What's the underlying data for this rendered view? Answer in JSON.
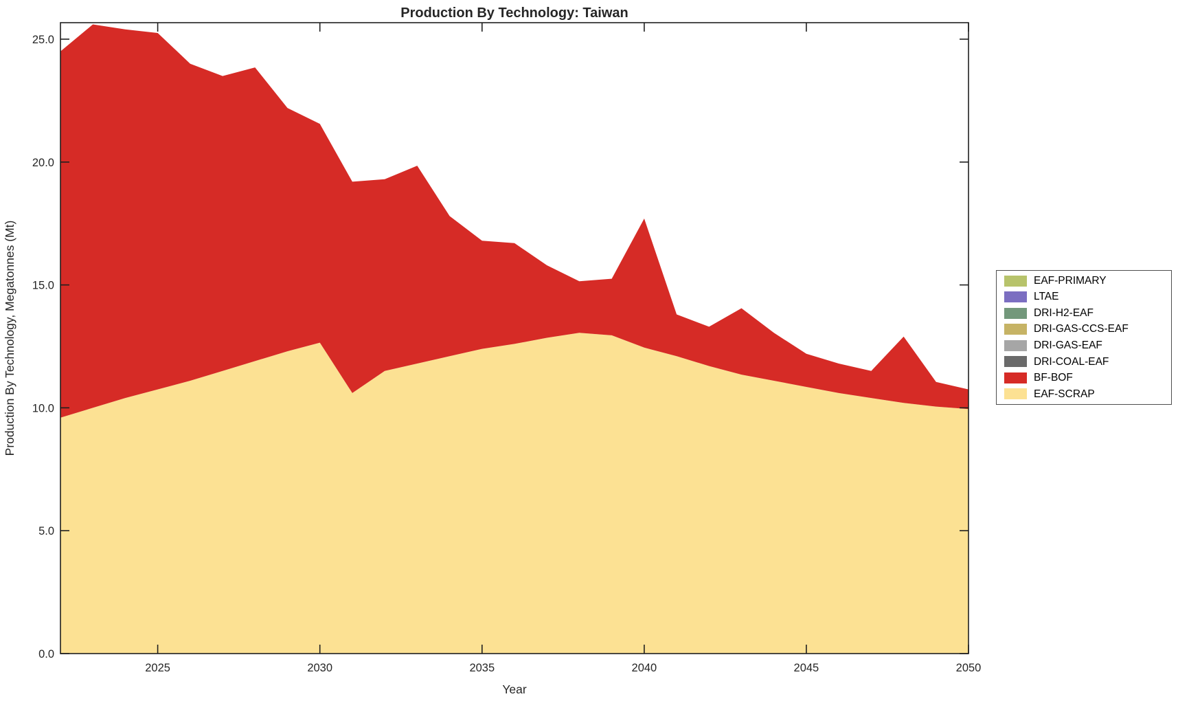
{
  "chart_data": {
    "type": "area",
    "stacked": true,
    "title": "Production By Technology: Taiwan",
    "xlabel": "Year",
    "ylabel": "Production By Technology, Megatonnes (Mt)",
    "xlim": [
      2022,
      2050
    ],
    "ylim": [
      0,
      25.67
    ],
    "grid": false,
    "axis_color": "#1f1f1f",
    "x_ticks": [
      {
        "value": 2025,
        "label": "2025"
      },
      {
        "value": 2030,
        "label": "2030"
      },
      {
        "value": 2035,
        "label": "2035"
      },
      {
        "value": 2040,
        "label": "2040"
      },
      {
        "value": 2045,
        "label": "2045"
      },
      {
        "value": 2050,
        "label": "2050"
      }
    ],
    "y_ticks": [
      {
        "value": 0,
        "label": "0.0"
      },
      {
        "value": 5,
        "label": "5.0"
      },
      {
        "value": 10,
        "label": "10.0"
      },
      {
        "value": 15,
        "label": "15.0"
      },
      {
        "value": 20,
        "label": "20.0"
      },
      {
        "value": 25,
        "label": "25.0"
      }
    ],
    "x": [
      2022,
      2023,
      2024,
      2025,
      2026,
      2027,
      2028,
      2029,
      2030,
      2031,
      2032,
      2033,
      2034,
      2035,
      2036,
      2037,
      2038,
      2039,
      2040,
      2041,
      2042,
      2043,
      2044,
      2045,
      2046,
      2047,
      2048,
      2049,
      2050
    ],
    "series": [
      {
        "name": "EAF-SCRAP",
        "color": "#fce193",
        "values": [
          9.6,
          10.0,
          10.4,
          10.75,
          11.1,
          11.5,
          11.9,
          12.3,
          12.65,
          10.6,
          11.5,
          11.8,
          12.1,
          12.4,
          12.6,
          12.85,
          13.05,
          12.95,
          12.45,
          12.1,
          11.7,
          11.35,
          11.1,
          10.85,
          10.6,
          10.4,
          10.2,
          10.05,
          9.95
        ]
      },
      {
        "name": "BF-BOF",
        "color": "#d62b26",
        "values": [
          14.9,
          15.6,
          15.0,
          14.5,
          12.9,
          12.0,
          11.95,
          9.9,
          8.9,
          8.6,
          7.8,
          8.05,
          5.7,
          4.4,
          4.1,
          2.95,
          2.1,
          2.3,
          5.25,
          1.7,
          1.6,
          2.7,
          1.95,
          1.35,
          1.2,
          1.1,
          2.7,
          1.0,
          0.8
        ]
      },
      {
        "name": "DRI-COAL-EAF",
        "color": "#6a6a6a",
        "values": [
          0,
          0,
          0,
          0,
          0,
          0,
          0,
          0,
          0,
          0,
          0,
          0,
          0,
          0,
          0,
          0,
          0,
          0,
          0,
          0,
          0,
          0,
          0,
          0,
          0,
          0,
          0,
          0,
          0
        ]
      },
      {
        "name": "DRI-GAS-EAF",
        "color": "#a6a6a6",
        "values": [
          0,
          0,
          0,
          0,
          0,
          0,
          0,
          0,
          0,
          0,
          0,
          0,
          0,
          0,
          0,
          0,
          0,
          0,
          0,
          0,
          0,
          0,
          0,
          0,
          0,
          0,
          0,
          0,
          0
        ]
      },
      {
        "name": "DRI-GAS-CCS-EAF",
        "color": "#c6b365",
        "values": [
          0,
          0,
          0,
          0,
          0,
          0,
          0,
          0,
          0,
          0,
          0,
          0,
          0,
          0,
          0,
          0,
          0,
          0,
          0,
          0,
          0,
          0,
          0,
          0,
          0,
          0,
          0,
          0,
          0
        ]
      },
      {
        "name": "DRI-H2-EAF",
        "color": "#73987b",
        "values": [
          0,
          0,
          0,
          0,
          0,
          0,
          0,
          0,
          0,
          0,
          0,
          0,
          0,
          0,
          0,
          0,
          0,
          0,
          0,
          0,
          0,
          0,
          0,
          0,
          0,
          0,
          0,
          0,
          0
        ]
      },
      {
        "name": "LTAE",
        "color": "#7b6ec1",
        "values": [
          0,
          0,
          0,
          0,
          0,
          0,
          0,
          0,
          0,
          0,
          0,
          0,
          0,
          0,
          0,
          0,
          0,
          0,
          0,
          0,
          0,
          0,
          0,
          0,
          0,
          0,
          0,
          0,
          0
        ]
      },
      {
        "name": "EAF-PRIMARY",
        "color": "#b7c36b",
        "values": [
          0,
          0,
          0,
          0,
          0,
          0,
          0,
          0,
          0,
          0,
          0,
          0,
          0,
          0,
          0,
          0,
          0,
          0,
          0,
          0,
          0,
          0,
          0,
          0,
          0,
          0,
          0,
          0,
          0
        ]
      }
    ],
    "legend": {
      "position": "right-outside",
      "entries": [
        {
          "label": "EAF-PRIMARY",
          "color": "#b7c36b"
        },
        {
          "label": "LTAE",
          "color": "#7b6ec1"
        },
        {
          "label": "DRI-H2-EAF",
          "color": "#73987b"
        },
        {
          "label": "DRI-GAS-CCS-EAF",
          "color": "#c6b365"
        },
        {
          "label": "DRI-GAS-EAF",
          "color": "#a6a6a6"
        },
        {
          "label": "DRI-COAL-EAF",
          "color": "#6a6a6a"
        },
        {
          "label": "BF-BOF",
          "color": "#d62b26"
        },
        {
          "label": "EAF-SCRAP",
          "color": "#fce193"
        }
      ]
    }
  }
}
